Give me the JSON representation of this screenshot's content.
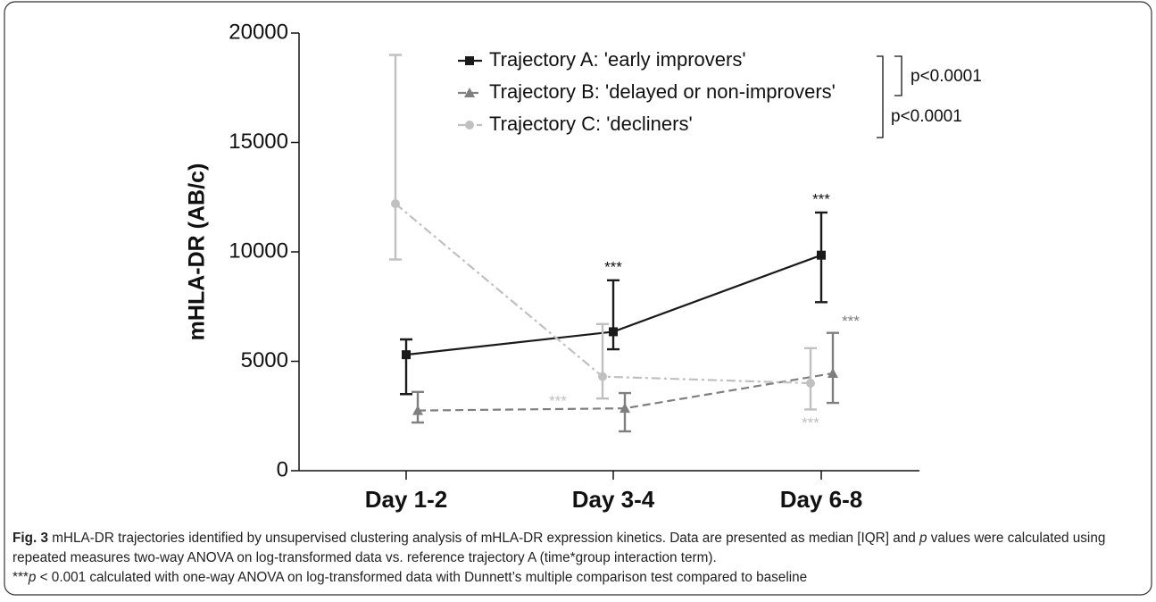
{
  "chart_data": {
    "type": "line",
    "y_label": "mHLA-DR (AB/c)",
    "categories": [
      "Day 1-2",
      "Day 3-4",
      "Day 6-8"
    ],
    "ylim": [
      0,
      20000
    ],
    "yticks": [
      0,
      5000,
      10000,
      15000,
      20000
    ],
    "series": [
      {
        "name": "Trajectory A: 'early improvers'",
        "color": "#1a1a1a",
        "dash": "solid",
        "marker": "square",
        "values": [
          5300,
          6350,
          9850
        ],
        "lower": [
          3500,
          5550,
          7700
        ],
        "upper": [
          6000,
          8700,
          11800
        ],
        "significance": [
          null,
          "***",
          "***"
        ]
      },
      {
        "name": "Trajectory B: 'delayed or non-improvers'",
        "color": "#7f7f7f",
        "dash": "dashed",
        "marker": "triangle",
        "values": [
          2750,
          2850,
          4450
        ],
        "lower": [
          2200,
          1800,
          3100
        ],
        "upper": [
          3600,
          3550,
          6300
        ],
        "significance": [
          null,
          null,
          "***"
        ]
      },
      {
        "name": "Trajectory C: 'decliners'",
        "color": "#c0c0c0",
        "dash": "dashdot",
        "marker": "circle",
        "values": [
          12200,
          4300,
          4000
        ],
        "lower": [
          9650,
          3300,
          2800
        ],
        "upper": [
          19000,
          6700,
          5600
        ],
        "significance": [
          null,
          "***",
          "***"
        ]
      }
    ],
    "comparisons": [
      "p<0.0001",
      "p<0.0001"
    ]
  },
  "caption": {
    "label": "Fig. 3",
    "parts": [
      " mHLA-DR trajectories identified by unsupervised clustering analysis of mHLA-DR expression kinetics. Data are presented as median [IQR] and ",
      "p",
      " values were calculated using repeated measures two-way ANOVA on log-transformed data vs. reference trajectory A (time*group interaction term).",
      "***",
      "p",
      " < 0.001 calculated with one-way ANOVA on log-transformed data with Dunnett’s multiple comparison test compared to baseline"
    ]
  }
}
